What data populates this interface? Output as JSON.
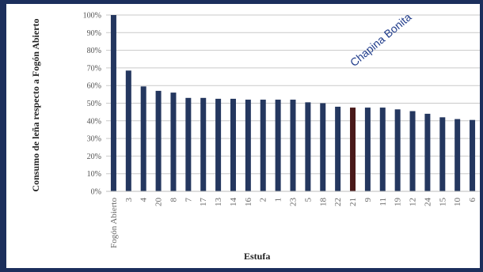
{
  "chart_data": {
    "type": "bar",
    "xlabel": "Estufa",
    "ylabel": "Consumo de leña respecto a Fogón Abierto",
    "ylim": [
      0,
      100
    ],
    "yticks": [
      "0%",
      "10%",
      "20%",
      "30%",
      "40%",
      "50%",
      "60%",
      "70%",
      "80%",
      "90%",
      "100%"
    ],
    "grid": true,
    "categories": [
      "Fogón Abierto",
      "3",
      "4",
      "20",
      "8",
      "7",
      "17",
      "13",
      "14",
      "16",
      "2",
      "1",
      "23",
      "5",
      "18",
      "22",
      "21",
      "9",
      "11",
      "19",
      "12",
      "24",
      "15",
      "10",
      "6"
    ],
    "values": [
      100,
      68.5,
      59.5,
      57,
      56,
      53,
      53,
      52.5,
      52.5,
      52,
      52,
      52,
      52,
      50.5,
      50,
      48,
      47.5,
      47.5,
      47.5,
      46.5,
      45.5,
      44,
      42,
      41,
      40.5
    ],
    "bar_color": "#24375f",
    "highlight_index": 16,
    "highlight_color": "#4a1a1a",
    "annotation": "Chapina Bonita"
  }
}
